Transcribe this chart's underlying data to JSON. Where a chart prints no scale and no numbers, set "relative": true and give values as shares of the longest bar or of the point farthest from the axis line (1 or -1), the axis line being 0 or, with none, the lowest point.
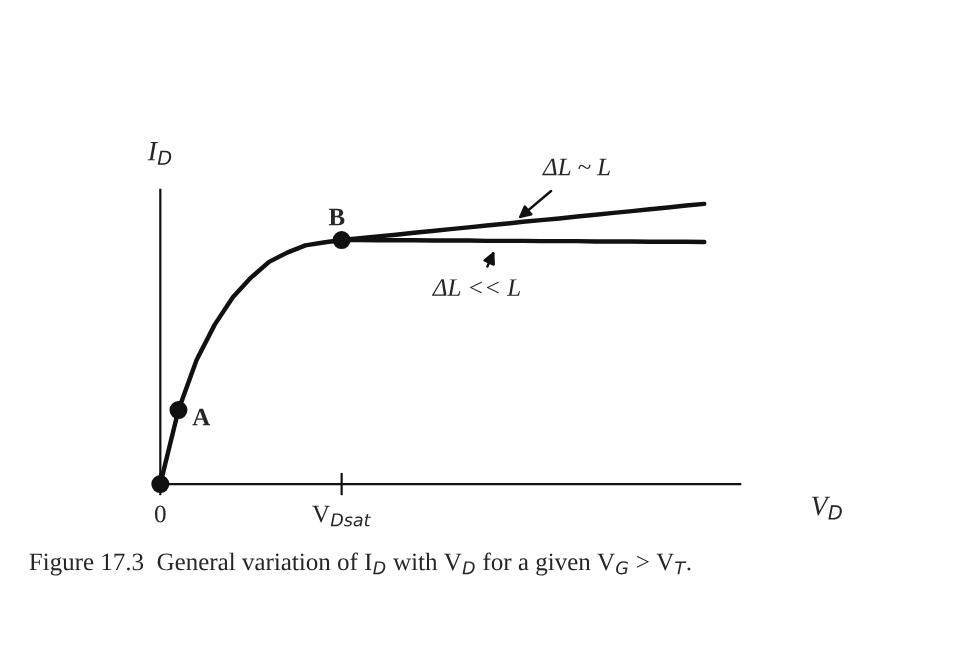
{
  "chart_data": {
    "type": "line",
    "relative": true,
    "xlabel": "V$_{D}$",
    "ylabel": "I$_{D}$",
    "categories": [
      "0",
      null,
      null,
      null,
      null,
      null,
      null,
      null,
      null,
      null,
      "V$_{Dsat}$",
      null,
      null,
      null,
      null,
      null,
      null,
      null,
      null,
      null,
      null,
      null,
      null,
      null,
      null,
      null,
      null,
      null,
      null,
      null,
      null
    ],
    "line_style": "solid",
    "series": [
      {
        "color": "#111111",
        "values": [
          0,
          0.264,
          0.443,
          0.569,
          0.667,
          0.737,
          0.793,
          0.826,
          0.852,
          0.862,
          0.871,
          null,
          null,
          null,
          null,
          null,
          null,
          null,
          null,
          null,
          null,
          null,
          null,
          null,
          null,
          null,
          null,
          null,
          null,
          null,
          null
        ]
      },
      {
        "color": "#111111",
        "values": [
          null,
          null,
          null,
          null,
          null,
          null,
          null,
          null,
          null,
          null,
          0.871,
          0.877,
          0.884,
          0.89,
          0.897,
          0.903,
          0.91,
          0.916,
          0.923,
          0.929,
          0.936,
          0.942,
          0.948,
          0.955,
          0.961,
          0.968,
          0.974,
          0.981,
          0.987,
          0.994,
          1.0
        ]
      },
      {
        "color": "#111111",
        "values": [
          null,
          null,
          null,
          null,
          null,
          null,
          null,
          null,
          null,
          null,
          0.871,
          0.871,
          0.87,
          0.87,
          0.87,
          0.869,
          0.869,
          0.869,
          0.868,
          0.868,
          0.868,
          0.867,
          0.867,
          0.867,
          0.866,
          0.866,
          0.866,
          0.865,
          0.865,
          0.865,
          0.864
        ]
      },
      {
        "type": "scatter",
        "marker": "circle",
        "color": "#111111",
        "values": [
          0,
          0.264,
          null,
          null,
          null,
          null,
          null,
          null,
          null,
          null,
          0.871,
          null,
          null,
          null,
          null,
          null,
          null,
          null,
          null,
          null,
          null,
          null,
          null,
          null,
          null,
          null,
          null,
          null,
          null,
          null,
          null
        ]
      }
    ],
    "annotations": [
      "A",
      "B",
      "ΔL ~ L",
      "ΔL << L",
      "Figure 17.3  General variation of I$_{D}$ with V$_{D}$ for a given V$_{G}$ > V$_{T}$."
    ]
  }
}
